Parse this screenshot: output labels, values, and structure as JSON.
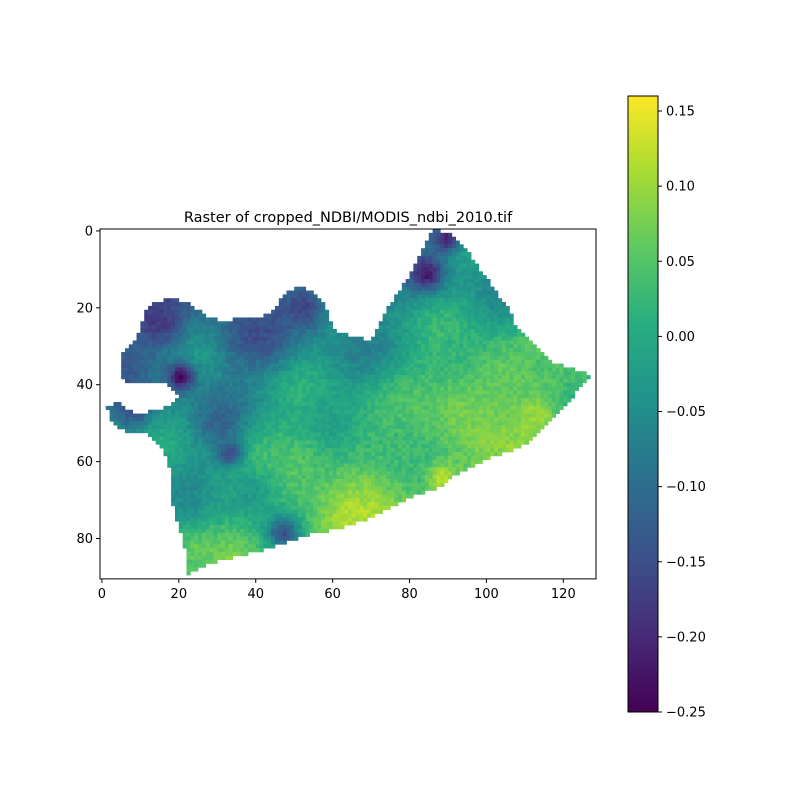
{
  "chart_data": {
    "type": "heatmap",
    "title": "Raster of cropped_NDBI/MODIS_ndbi_2010.tif",
    "xlabel": "",
    "ylabel": "",
    "xlim": [
      -0.5,
      128.5
    ],
    "ylim": [
      90.5,
      -0.5
    ],
    "x_ticks": [
      0,
      20,
      40,
      60,
      80,
      100,
      120
    ],
    "y_ticks": [
      0,
      20,
      40,
      60,
      80
    ],
    "grid": false,
    "colormap": "viridis",
    "colorbar": {
      "min": -0.25,
      "max": 0.16,
      "ticks": [
        0.15,
        0.1,
        0.05,
        0.0,
        -0.05,
        -0.1,
        -0.15,
        -0.2,
        -0.25
      ],
      "tick_labels": [
        "0.15",
        "0.10",
        "0.05",
        "0.00",
        "−0.05",
        "−0.10",
        "−0.15",
        "−0.20",
        "−0.25"
      ]
    },
    "raster": {
      "width": 129,
      "height": 91,
      "outline": [
        [
          86,
          0
        ],
        [
          90,
          1
        ],
        [
          93,
          3
        ],
        [
          96,
          7
        ],
        [
          101,
          14
        ],
        [
          106,
          21
        ],
        [
          108,
          26
        ],
        [
          114,
          31
        ],
        [
          118,
          35
        ],
        [
          122,
          36
        ],
        [
          125,
          37
        ],
        [
          128,
          38
        ],
        [
          126,
          40
        ],
        [
          123,
          43
        ],
        [
          120,
          47
        ],
        [
          116,
          51
        ],
        [
          112,
          55
        ],
        [
          106,
          58
        ],
        [
          100,
          60
        ],
        [
          92,
          64
        ],
        [
          88,
          67
        ],
        [
          80,
          70
        ],
        [
          74,
          73
        ],
        [
          68,
          76
        ],
        [
          62,
          78
        ],
        [
          56,
          79
        ],
        [
          52,
          80
        ],
        [
          47,
          82
        ],
        [
          40,
          84
        ],
        [
          32,
          86
        ],
        [
          26,
          88
        ],
        [
          22,
          90
        ],
        [
          22,
          86
        ],
        [
          21,
          80
        ],
        [
          19,
          74
        ],
        [
          18,
          70
        ],
        [
          18,
          64
        ],
        [
          17,
          60
        ],
        [
          16,
          57
        ],
        [
          14,
          55
        ],
        [
          11,
          53
        ],
        [
          8,
          53
        ],
        [
          5,
          52
        ],
        [
          3,
          51
        ],
        [
          2,
          48
        ],
        [
          1,
          46
        ],
        [
          5,
          45
        ],
        [
          7,
          47
        ],
        [
          10,
          48
        ],
        [
          14,
          47
        ],
        [
          18,
          46
        ],
        [
          20,
          43
        ],
        [
          18,
          41
        ],
        [
          16,
          40
        ],
        [
          12,
          40
        ],
        [
          7,
          40
        ],
        [
          5,
          39
        ],
        [
          5,
          36
        ],
        [
          5,
          33
        ],
        [
          8,
          30
        ],
        [
          10,
          26
        ],
        [
          11,
          22
        ],
        [
          14,
          19
        ],
        [
          18,
          18
        ],
        [
          22,
          19
        ],
        [
          25,
          21
        ],
        [
          28,
          23
        ],
        [
          32,
          24
        ],
        [
          36,
          23
        ],
        [
          40,
          23
        ],
        [
          44,
          22
        ],
        [
          46,
          19
        ],
        [
          48,
          16
        ],
        [
          52,
          15
        ],
        [
          56,
          17
        ],
        [
          58,
          20
        ],
        [
          60,
          25
        ],
        [
          62,
          27
        ],
        [
          66,
          28
        ],
        [
          70,
          29
        ],
        [
          72,
          25
        ],
        [
          74,
          21
        ],
        [
          76,
          18
        ],
        [
          78,
          15
        ],
        [
          80,
          12
        ],
        [
          82,
          8
        ],
        [
          84,
          4
        ]
      ],
      "low_spots": [
        {
          "x": 20,
          "y": 38,
          "r": 2.5,
          "value": -0.24
        },
        {
          "x": 84,
          "y": 11,
          "r": 3,
          "value": -0.22
        },
        {
          "x": 89,
          "y": 2,
          "r": 2.5,
          "value": -0.21
        },
        {
          "x": 47,
          "y": 78,
          "r": 3,
          "value": -0.2
        },
        {
          "x": 33,
          "y": 58,
          "r": 2.5,
          "value": -0.2
        },
        {
          "x": 14,
          "y": 24,
          "r": 4,
          "value": -0.18
        },
        {
          "x": 52,
          "y": 20,
          "r": 4,
          "value": -0.17
        },
        {
          "x": 8,
          "y": 46,
          "r": 3,
          "value": -0.16
        },
        {
          "x": 40,
          "y": 27,
          "r": 6,
          "value": -0.15
        },
        {
          "x": 30,
          "y": 50,
          "r": 4,
          "value": -0.12
        }
      ],
      "high_spots": [
        {
          "x": 88,
          "y": 64,
          "r": 3,
          "value": 0.15
        },
        {
          "x": 65,
          "y": 74,
          "r": 8,
          "value": 0.12
        },
        {
          "x": 112,
          "y": 48,
          "r": 4,
          "value": 0.11
        },
        {
          "x": 95,
          "y": 48,
          "r": 10,
          "value": 0.08
        },
        {
          "x": 103,
          "y": 38,
          "r": 6,
          "value": 0.06
        },
        {
          "x": 24,
          "y": 84,
          "r": 4,
          "value": 0.06
        },
        {
          "x": 50,
          "y": 62,
          "r": 8,
          "value": 0.05
        },
        {
          "x": 115,
          "y": 34,
          "r": 4,
          "value": 0.04
        },
        {
          "x": 75,
          "y": 55,
          "r": 8,
          "value": 0.03
        },
        {
          "x": 38,
          "y": 68,
          "r": 5,
          "value": -0.03
        }
      ]
    }
  }
}
